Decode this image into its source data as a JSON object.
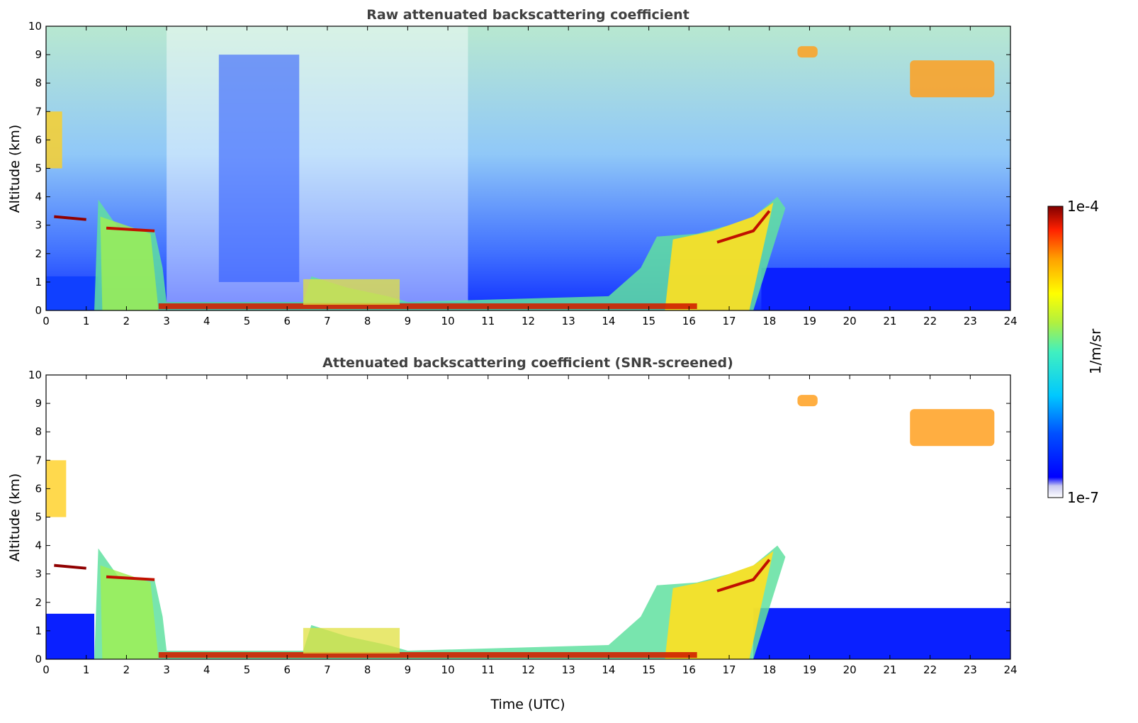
{
  "chart_data": [
    {
      "type": "heatmap",
      "title": "Raw attenuated backscattering coefficient",
      "xlabel": "",
      "ylabel": "Altitude (km)",
      "xlim": [
        0,
        24
      ],
      "ylim": [
        0,
        10
      ],
      "xticks": [
        "0",
        "1",
        "2",
        "3",
        "4",
        "5",
        "6",
        "7",
        "8",
        "9",
        "10",
        "11",
        "12",
        "13",
        "14",
        "15",
        "16",
        "17",
        "18",
        "19",
        "20",
        "21",
        "22",
        "23",
        "24"
      ],
      "yticks": [
        "0",
        "1",
        "2",
        "3",
        "4",
        "5",
        "6",
        "7",
        "8",
        "9",
        "10"
      ],
      "colormap": "jet",
      "color_scale": "log",
      "layers": {
        "boundary_layer_top_km": [
          [
            0,
            3.1
          ],
          [
            1,
            3.3
          ],
          [
            1.3,
            3.8
          ],
          [
            1.8,
            2.9
          ],
          [
            2.6,
            2.8
          ],
          [
            3,
            0.3
          ],
          [
            6.4,
            0.3
          ],
          [
            6.6,
            1.2
          ],
          [
            8,
            0.6
          ],
          [
            9,
            0.3
          ],
          [
            11,
            0.3
          ],
          [
            14,
            0.6
          ],
          [
            15,
            1.8
          ],
          [
            16,
            2.7
          ],
          [
            17,
            2.8
          ],
          [
            17.5,
            3.4
          ],
          [
            18.2,
            4.0
          ],
          [
            18.4,
            3.7
          ]
        ],
        "cirrus": [
          {
            "x": [
              18.7,
              19.2
            ],
            "alt_km": [
              8.9,
              9.3
            ]
          },
          {
            "x": [
              21.5,
              23.6
            ],
            "alt_km": [
              7.5,
              8.8
            ]
          }
        ],
        "mid_level_aerosol": [
          {
            "x": [
              0,
              0.4
            ],
            "alt_km": [
              5,
              7
            ]
          }
        ]
      }
    },
    {
      "type": "heatmap",
      "title": "Attenuated backscattering coefficient (SNR-screened)",
      "xlabel": "Time (UTC)",
      "ylabel": "Altitude (km)",
      "xlim": [
        0,
        24
      ],
      "ylim": [
        0,
        10
      ],
      "xticks": [
        "0",
        "1",
        "2",
        "3",
        "4",
        "5",
        "6",
        "7",
        "8",
        "9",
        "10",
        "11",
        "12",
        "13",
        "14",
        "15",
        "16",
        "17",
        "18",
        "19",
        "20",
        "21",
        "22",
        "23",
        "24"
      ],
      "yticks": [
        "0",
        "1",
        "2",
        "3",
        "4",
        "5",
        "6",
        "7",
        "8",
        "9",
        "10"
      ],
      "colormap": "jet",
      "color_scale": "log",
      "screening": "SNR",
      "layers": {
        "near_surface_blue_layer": [
          {
            "x": [
              0,
              1.2
            ],
            "alt_km": [
              0,
              1.6
            ]
          },
          {
            "x": [
              17.6,
              24
            ],
            "alt_km": [
              0,
              1.8
            ]
          }
        ],
        "cirrus": [
          {
            "x": [
              18.7,
              19.2
            ],
            "alt_km": [
              8.9,
              9.3
            ]
          },
          {
            "x": [
              21.5,
              23.6
            ],
            "alt_km": [
              7.5,
              8.8
            ]
          }
        ],
        "mid_level_aerosol": [
          {
            "x": [
              0,
              0.5
            ],
            "alt_km": [
              5,
              7
            ]
          }
        ]
      }
    }
  ],
  "colorbar": {
    "max_label": "1e-4",
    "min_label": "1e-7",
    "unit": "1/m/sr",
    "range": [
      1e-07,
      0.0001
    ]
  }
}
